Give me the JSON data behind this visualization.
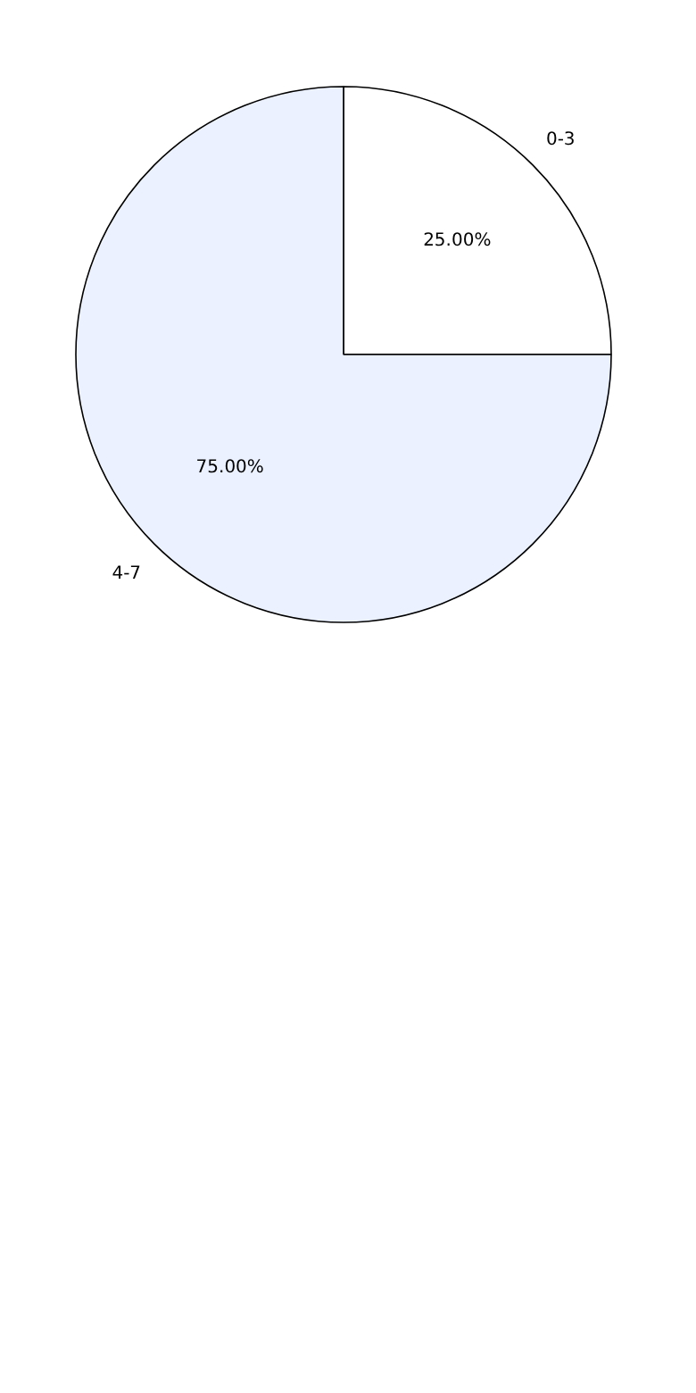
{
  "chart_data": {
    "type": "pie",
    "categories": [
      "0-3",
      "4-7"
    ],
    "values": [
      25,
      75
    ],
    "colors": [
      "#ffffff",
      "#ebf1ff"
    ],
    "value_labels": [
      "25.00%",
      "75.00%"
    ]
  }
}
